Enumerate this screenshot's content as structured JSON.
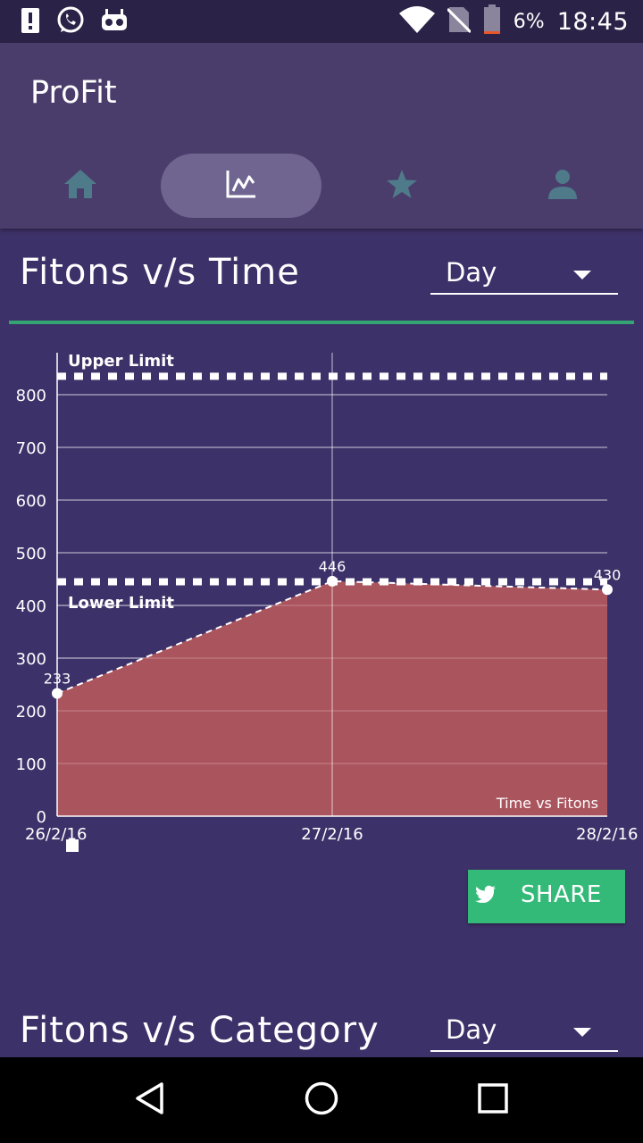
{
  "status_bar": {
    "battery_percent": "6%",
    "time": "18:45",
    "icons": [
      "alert-icon",
      "whatsapp-icon",
      "android-icon",
      "wifi-icon",
      "no-sim-icon",
      "battery-icon"
    ]
  },
  "app": {
    "title": "ProFit",
    "tabs": [
      {
        "icon": "home-icon",
        "active": false
      },
      {
        "icon": "chart-icon",
        "active": true
      },
      {
        "icon": "star-icon",
        "active": false
      },
      {
        "icon": "person-icon",
        "active": false
      }
    ]
  },
  "section1": {
    "title": "Fitons v/s Time",
    "dropdown_value": "Day"
  },
  "chart_data": {
    "type": "area",
    "x": [
      "26/2/16",
      "27/2/16",
      "28/2/16"
    ],
    "values": [
      233,
      446,
      430
    ],
    "value_labels": [
      "233",
      "446",
      "430"
    ],
    "ylim": [
      0,
      800
    ],
    "yticks": [
      "0",
      "100",
      "200",
      "300",
      "400",
      "500",
      "600",
      "700",
      "800"
    ],
    "upper_limit": {
      "label": "Upper Limit",
      "value": 835
    },
    "lower_limit": {
      "label": "Lower Limit",
      "value": 445
    },
    "series_label": "Time vs Fitons",
    "grid": true,
    "colors": {
      "fill": "#b0565e",
      "line": "#ffffff"
    }
  },
  "share": {
    "label": "SHARE",
    "icon": "twitter-icon",
    "color": "#34ba78"
  },
  "section2": {
    "title": "Fitons v/s Category",
    "dropdown_value": "Day"
  },
  "nav_bar": {
    "icons": [
      "back-icon",
      "home-circle-icon",
      "recents-icon"
    ]
  }
}
